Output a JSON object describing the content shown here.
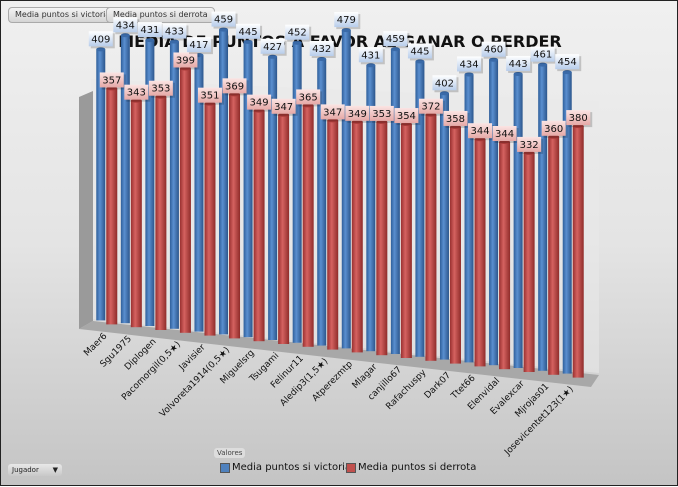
{
  "field_buttons": [
    "Media puntos si victoria",
    "Media puntos si derrota"
  ],
  "valores_label": "Valores",
  "row_field": {
    "label": "Jugador",
    "icon": "dropdown-arrow-icon"
  },
  "legend": [
    {
      "label": "Media puntos si victoria",
      "color": "#4f81bd"
    },
    {
      "label": "Media puntos si derrota",
      "color": "#c0504d"
    }
  ],
  "chart_data": {
    "type": "bar",
    "style": "3d-cylinder-clustered",
    "title": "MEDIA DE PUNTOS A FAVOR AL GANAR O PERDER",
    "xlabel": "",
    "ylabel": "",
    "legend_position": "bottom",
    "categories": [
      "Maer6",
      "Sgu1975",
      "Diplogen",
      "Pacomorgil(0,5★)",
      "Javisier",
      "Volvoreta1914(0,5★)",
      "Miguelsrg",
      "Tsugami",
      "Felinur11",
      "Aledip3(1,5★)",
      "Atperezmtp",
      "Mlagar",
      "canjillo67",
      "Rafachuspy",
      "Dark07",
      "Ttet66",
      "Elenvidal",
      "Evalexcar",
      "Mjrojas01",
      "Josevicentet123(1★)"
    ],
    "series": [
      {
        "name": "Media puntos si victoria",
        "color": "#4f81bd",
        "values": [
          409,
          434,
          431,
          433,
          417,
          459,
          445,
          427,
          452,
          432,
          479,
          431,
          459,
          445,
          402,
          434,
          460,
          443,
          461,
          454
        ]
      },
      {
        "name": "Media puntos si derrota",
        "color": "#c0504d",
        "values": [
          357,
          343,
          353,
          399,
          351,
          369,
          349,
          347,
          365,
          347,
          349,
          353,
          354,
          372,
          358,
          344,
          344,
          332,
          360,
          380
        ]
      }
    ]
  }
}
